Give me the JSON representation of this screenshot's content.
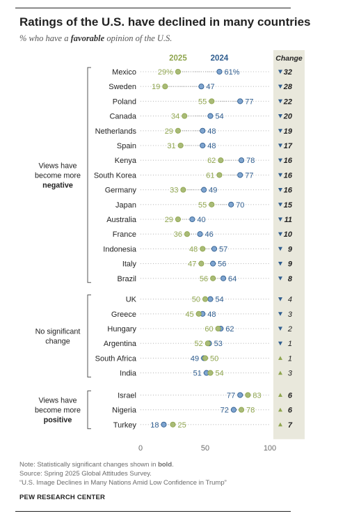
{
  "title": "Ratings of the U.S. have declined in many countries",
  "subtitle": {
    "prefix": "% who have a ",
    "emphasis": "favorable",
    "suffix": " opinion of the U.S."
  },
  "colors": {
    "y2025": "#8fa54e",
    "y2025_fill": "#a9bb77",
    "y2024": "#2f5d8f",
    "y2024_fill": "#7ea4cf",
    "change_bg": "#e9e8dc",
    "dots": "#b9b9b9",
    "axis_label": "#6b6b6b"
  },
  "chart_data": {
    "type": "dot-plot",
    "series_labels": {
      "y2025": "2025",
      "y2024": "2024",
      "change": "Change"
    },
    "xlim": [
      0,
      100
    ],
    "xticks": [
      0,
      50,
      100
    ],
    "groups": [
      {
        "label_lines": [
          "Views have",
          "become more",
          "negative"
        ],
        "bold_line": 2,
        "rows": [
          {
            "country": "Mexico",
            "y2025": 29,
            "y2024": 61,
            "change": 32,
            "dir": "down",
            "sig": true,
            "pct": true
          },
          {
            "country": "Sweden",
            "y2025": 19,
            "y2024": 47,
            "change": 28,
            "dir": "down",
            "sig": true
          },
          {
            "country": "Poland",
            "y2025": 55,
            "y2024": 77,
            "change": 22,
            "dir": "down",
            "sig": true
          },
          {
            "country": "Canada",
            "y2025": 34,
            "y2024": 54,
            "change": 20,
            "dir": "down",
            "sig": true
          },
          {
            "country": "Netherlands",
            "y2025": 29,
            "y2024": 48,
            "change": 19,
            "dir": "down",
            "sig": true
          },
          {
            "country": "Spain",
            "y2025": 31,
            "y2024": 48,
            "change": 17,
            "dir": "down",
            "sig": true
          },
          {
            "country": "Kenya",
            "y2025": 62,
            "y2024": 78,
            "change": 16,
            "dir": "down",
            "sig": true
          },
          {
            "country": "South Korea",
            "y2025": 61,
            "y2024": 77,
            "change": 16,
            "dir": "down",
            "sig": true
          },
          {
            "country": "Germany",
            "y2025": 33,
            "y2024": 49,
            "change": 16,
            "dir": "down",
            "sig": true
          },
          {
            "country": "Japan",
            "y2025": 55,
            "y2024": 70,
            "change": 15,
            "dir": "down",
            "sig": true
          },
          {
            "country": "Australia",
            "y2025": 29,
            "y2024": 40,
            "change": 11,
            "dir": "down",
            "sig": true
          },
          {
            "country": "France",
            "y2025": 36,
            "y2024": 46,
            "change": 10,
            "dir": "down",
            "sig": true
          },
          {
            "country": "Indonesia",
            "y2025": 48,
            "y2024": 57,
            "change": 9,
            "dir": "down",
            "sig": true
          },
          {
            "country": "Italy",
            "y2025": 47,
            "y2024": 56,
            "change": 9,
            "dir": "down",
            "sig": true
          },
          {
            "country": "Brazil",
            "y2025": 56,
            "y2024": 64,
            "change": 8,
            "dir": "down",
            "sig": true
          }
        ]
      },
      {
        "label_lines": [
          "No significant",
          "change"
        ],
        "bold_line": -1,
        "rows": [
          {
            "country": "UK",
            "y2025": 50,
            "y2024": 54,
            "change": 4,
            "dir": "down",
            "sig": false
          },
          {
            "country": "Greece",
            "y2025": 45,
            "y2024": 48,
            "change": 3,
            "dir": "down",
            "sig": false
          },
          {
            "country": "Hungary",
            "y2025": 60,
            "y2024": 62,
            "change": 2,
            "dir": "down",
            "sig": false
          },
          {
            "country": "Argentina",
            "y2025": 52,
            "y2024": 53,
            "change": 1,
            "dir": "down",
            "sig": false
          },
          {
            "country": "South Africa",
            "y2025": 50,
            "y2024": 49,
            "change": 1,
            "dir": "up",
            "sig": false
          },
          {
            "country": "India",
            "y2025": 54,
            "y2024": 51,
            "change": 3,
            "dir": "up",
            "sig": false
          }
        ]
      },
      {
        "label_lines": [
          "Views have",
          "become more",
          "positive"
        ],
        "bold_line": 2,
        "rows": [
          {
            "country": "Israel",
            "y2025": 83,
            "y2024": 77,
            "change": 6,
            "dir": "up",
            "sig": true
          },
          {
            "country": "Nigeria",
            "y2025": 78,
            "y2024": 72,
            "change": 6,
            "dir": "up",
            "sig": true
          },
          {
            "country": "Turkey",
            "y2025": 25,
            "y2024": 18,
            "change": 7,
            "dir": "up",
            "sig": true
          }
        ]
      }
    ]
  },
  "footer": {
    "note_prefix": "Note: Statistically significant changes shown in ",
    "note_bold": "bold",
    "note_suffix": ".",
    "source": "Source: Spring 2025 Global Attitudes Survey.",
    "report": "“U.S. Image Declines in Many Nations Amid Low Confidence in Trump”",
    "brand": "PEW RESEARCH CENTER"
  }
}
